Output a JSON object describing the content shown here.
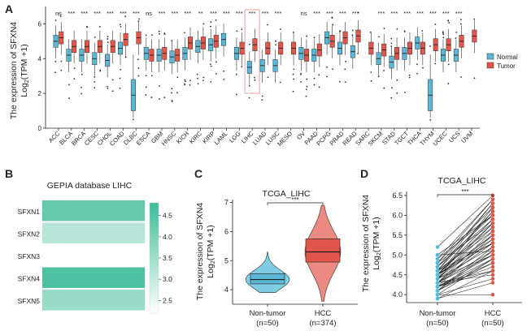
{
  "colors": {
    "normal": "#5bb7d6",
    "tumor": "#e0564a",
    "heat_low": "#ffffff",
    "heat_high": "#3fbc9a",
    "highlight": "#e8a0a0"
  },
  "chart_data": [
    {
      "type": "box",
      "panel": "A",
      "ylabel_main": "The expression of SFXN4",
      "ylabel_sub": "Log2(TPM +1)",
      "ylim": [
        0,
        7
      ],
      "yticks": [
        "0",
        "2",
        "4",
        "6"
      ],
      "legend": [
        "Normal",
        "Tumor"
      ],
      "categories": [
        "ACC",
        "BLCA",
        "BRCA",
        "CESC",
        "CHOL",
        "COAD",
        "DLBC",
        "ESCA",
        "GBM",
        "HNSC",
        "KICH",
        "KIRC",
        "KIRP",
        "LAML",
        "LGG",
        "LIHC",
        "LUAD",
        "LUSC",
        "MESO",
        "OV",
        "PAAD",
        "PCPG",
        "PRAD",
        "READ",
        "SARC",
        "SKCM",
        "STAD",
        "TGCT",
        "THCA",
        "THYM",
        "UCEC",
        "UCS",
        "UVM"
      ],
      "significance": [
        "ns",
        "***",
        "***",
        "***",
        "***",
        "***",
        "***",
        "ns",
        "***",
        "***",
        "***",
        "**",
        "***",
        "***",
        "***",
        "***",
        "***",
        "***",
        "",
        "ns",
        "***",
        "***",
        "***",
        "***",
        "",
        "***",
        "***",
        "***",
        "***",
        "***",
        "***",
        "***",
        ""
      ],
      "highlight": "LIHC",
      "normal_median": [
        5.0,
        4.2,
        4.2,
        4.0,
        3.9,
        4.6,
        1.9,
        4.3,
        4.2,
        4.1,
        4.3,
        4.7,
        4.8,
        5.1,
        4.3,
        3.5,
        3.6,
        3.6,
        null,
        4.3,
        4.2,
        5.2,
        4.6,
        4.4,
        null,
        4.0,
        3.8,
        4.3,
        4.9,
        1.9,
        4.2,
        4.2,
        null
      ],
      "tumor_median": [
        5.2,
        4.7,
        4.7,
        4.7,
        4.7,
        5.1,
        5.2,
        4.2,
        4.3,
        4.2,
        4.9,
        4.9,
        5.0,
        null,
        4.6,
        4.8,
        4.6,
        4.6,
        4.6,
        4.2,
        4.5,
        5.0,
        5.2,
        5.3,
        4.6,
        4.5,
        4.3,
        4.6,
        4.6,
        4.8,
        4.8,
        5.0,
        5.3
      ]
    },
    {
      "type": "heatmap",
      "panel": "B",
      "title": "GEPIA database LIHC",
      "rows": [
        "SFXN1",
        "SFXN2",
        "SFXN3",
        "SFXN4",
        "SFXN5"
      ],
      "values": [
        4.3,
        3.2,
        2.2,
        4.6,
        3.6
      ],
      "colorbar_ticks": [
        "4.5",
        "4.0",
        "3.5",
        "3.0",
        "2.5"
      ],
      "range": [
        2.2,
        4.8
      ]
    },
    {
      "type": "violin",
      "panel": "C",
      "title": "TCGA_LIHC",
      "ylabel_main": "The expression of SFXN4",
      "ylabel_sub": "Log2(TPM +1)",
      "ylim": [
        3.5,
        7.1
      ],
      "yticks": [
        "4",
        "5",
        "6",
        "7"
      ],
      "groups": [
        {
          "name": "Non-tumor",
          "n": "(n=50)",
          "q1": 4.2,
          "median": 4.35,
          "q3": 4.55,
          "min": 3.9,
          "max": 5.3
        },
        {
          "name": "HCC",
          "n": "(n=374)",
          "q1": 4.95,
          "median": 5.3,
          "q3": 5.75,
          "min": 3.6,
          "max": 6.9
        }
      ],
      "significance": "***"
    },
    {
      "type": "paired",
      "panel": "D",
      "title": "TCGA_LIHC",
      "ylabel_main": "The expression of SFXN4",
      "ylabel_sub": "Log2(TPM +1)",
      "ylim": [
        3.8,
        6.6
      ],
      "yticks": [
        "4.0",
        "4.5",
        "5.0",
        "5.5",
        "6.0",
        "6.5"
      ],
      "groups": [
        {
          "name": "Non-tumor",
          "n": "(n=50)"
        },
        {
          "name": "HCC",
          "n": "(n=50)"
        }
      ],
      "significance": "***",
      "pairs": [
        [
          4.1,
          4.9
        ],
        [
          4.3,
          5.3
        ],
        [
          4.5,
          5.8
        ],
        [
          4.2,
          4.6
        ],
        [
          4.6,
          6.3
        ],
        [
          4.4,
          5.5
        ],
        [
          4.0,
          4.4
        ],
        [
          4.7,
          6.0
        ],
        [
          4.3,
          5.1
        ],
        [
          4.8,
          6.4
        ],
        [
          4.2,
          5.0
        ],
        [
          4.5,
          5.4
        ],
        [
          3.9,
          4.3
        ],
        [
          4.6,
          5.7
        ],
        [
          4.4,
          5.2
        ],
        [
          4.1,
          4.8
        ],
        [
          5.2,
          6.5
        ],
        [
          4.3,
          5.6
        ],
        [
          4.5,
          6.1
        ],
        [
          4.0,
          4.0
        ],
        [
          4.7,
          5.9
        ],
        [
          4.2,
          4.7
        ],
        [
          4.6,
          5.3
        ],
        [
          4.4,
          6.2
        ],
        [
          4.3,
          4.5
        ],
        [
          4.8,
          5.8
        ],
        [
          4.1,
          5.1
        ],
        [
          4.5,
          5.5
        ],
        [
          4.9,
          6.4
        ],
        [
          4.2,
          4.9
        ],
        [
          4.4,
          5.0
        ],
        [
          4.6,
          5.6
        ],
        [
          3.9,
          4.6
        ],
        [
          4.5,
          5.9
        ],
        [
          4.3,
          5.4
        ],
        [
          5.0,
          6.0
        ],
        [
          4.2,
          4.8
        ],
        [
          4.4,
          5.7
        ],
        [
          4.7,
          6.3
        ],
        [
          4.1,
          5.2
        ],
        [
          5.0,
          5.1
        ],
        [
          4.3,
          4.6
        ],
        [
          4.6,
          6.1
        ],
        [
          4.5,
          5.3
        ],
        [
          4.2,
          5.5
        ],
        [
          4.8,
          6.2
        ],
        [
          4.0,
          4.9
        ],
        [
          4.4,
          5.8
        ],
        [
          4.9,
          6.0
        ],
        [
          4.3,
          5.0
        ]
      ]
    }
  ]
}
